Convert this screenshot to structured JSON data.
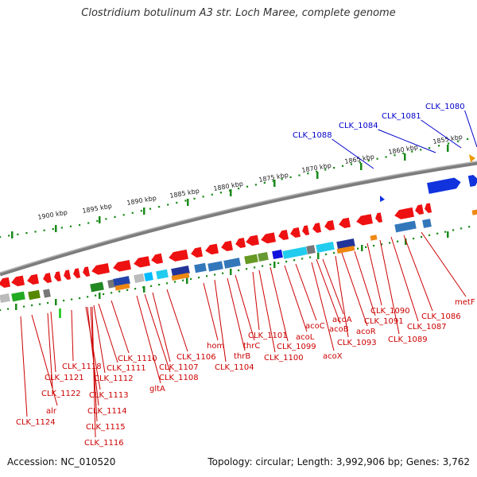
{
  "title": "Clostridium botulinum A3 str. Loch Maree, complete genome",
  "footer": {
    "accession": "Accession: NC_010520",
    "topology": "Topology: circular; Length: 3,992,906 bp; Genes: 3,762"
  },
  "colors": {
    "backbone": "#8a8a8a",
    "scale_ticks": "#1a8a1a",
    "red_label": "#cc0000",
    "blue_label": "#0000cc",
    "cds_red": "#ee1111",
    "blue_feature": "#1133dd"
  },
  "scale_labels": [
    "1900 kbp",
    "1895 kbp",
    "1890 kbp",
    "1885 kbp",
    "1880 kbp",
    "1875 kbp",
    "1870 kbp",
    "1865 kbp",
    "1860 kbp",
    "1855 kbp"
  ],
  "blue_labels": [
    "CLK_1088",
    "CLK_1084",
    "CLK_1081",
    "CLK_1080"
  ],
  "red_labels": [
    "CLK_1124",
    "alr",
    "CLK_1122",
    "CLK_1121",
    "CLK_1118",
    "CLK_1113",
    "CLK_1114",
    "CLK_1115",
    "CLK_1116",
    "CLK_1112",
    "CLK_1111",
    "CLK_1110",
    "gltA",
    "CLK_1108",
    "CLK_1107",
    "CLK_1106",
    "hom",
    "CLK_1104",
    "thrB",
    "thrC",
    "CLK_1101",
    "CLK_1100",
    "CLK_1099",
    "acoL",
    "acoC",
    "acoX",
    "acoB",
    "acoA",
    "CLK_1093",
    "acoR",
    "CLK_1091",
    "CLK_1090",
    "CLK_1089",
    "CLK_1087",
    "CLK_1086",
    "metF"
  ]
}
